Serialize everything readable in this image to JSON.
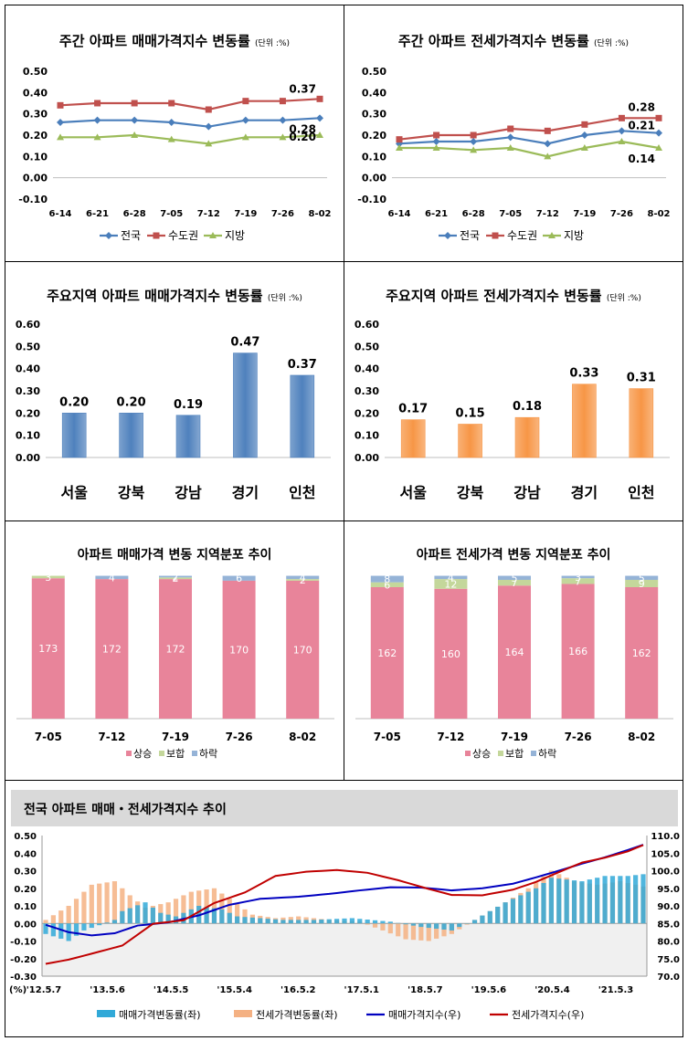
{
  "chart_data": [
    {
      "id": "weekly-sale",
      "type": "line",
      "title": "주간 아파트 매매가격지수 변동률",
      "unit": "(단위 :%)",
      "categories": [
        "6-14",
        "6-21",
        "6-28",
        "7-05",
        "7-12",
        "7-19",
        "7-26",
        "8-02"
      ],
      "ylim": [
        -0.1,
        0.5
      ],
      "yticks": [
        "-0.10",
        "0.00",
        "0.10",
        "0.20",
        "0.30",
        "0.40",
        "0.50"
      ],
      "series": [
        {
          "name": "전국",
          "color": "#4a7ebb",
          "marker": "diamond",
          "values": [
            0.26,
            0.27,
            0.27,
            0.26,
            0.24,
            0.27,
            0.27,
            0.28
          ],
          "end_label": "0.28"
        },
        {
          "name": "수도권",
          "color": "#c0504d",
          "marker": "square",
          "values": [
            0.34,
            0.35,
            0.35,
            0.35,
            0.32,
            0.36,
            0.36,
            0.37
          ],
          "end_label": "0.37"
        },
        {
          "name": "지방",
          "color": "#9bbb59",
          "marker": "triangle",
          "values": [
            0.19,
            0.19,
            0.2,
            0.18,
            0.16,
            0.19,
            0.19,
            0.2
          ],
          "end_label": "0.20"
        }
      ]
    },
    {
      "id": "weekly-jeonse",
      "type": "line",
      "title": "주간 아파트 전세가격지수 변동률",
      "unit": "(단위 :%)",
      "categories": [
        "6-14",
        "6-21",
        "6-28",
        "7-05",
        "7-12",
        "7-19",
        "7-26",
        "8-02"
      ],
      "ylim": [
        -0.1,
        0.5
      ],
      "yticks": [
        "-0.10",
        "0.00",
        "0.10",
        "0.20",
        "0.30",
        "0.40",
        "0.50"
      ],
      "series": [
        {
          "name": "전국",
          "color": "#4a7ebb",
          "marker": "diamond",
          "values": [
            0.16,
            0.17,
            0.17,
            0.19,
            0.16,
            0.2,
            0.22,
            0.21
          ],
          "end_label": "0.21"
        },
        {
          "name": "수도권",
          "color": "#c0504d",
          "marker": "square",
          "values": [
            0.18,
            0.2,
            0.2,
            0.23,
            0.22,
            0.25,
            0.28,
            0.28
          ],
          "end_label": "0.28"
        },
        {
          "name": "지방",
          "color": "#9bbb59",
          "marker": "triangle",
          "values": [
            0.14,
            0.14,
            0.13,
            0.14,
            0.1,
            0.14,
            0.17,
            0.14
          ],
          "end_label": "0.14"
        }
      ]
    },
    {
      "id": "regional-sale",
      "type": "bar",
      "title": "주요지역 아파트 매매가격지수 변동률",
      "unit": "(단위 :%)",
      "color": "#4f81bd",
      "categories": [
        "서울",
        "강북",
        "강남",
        "경기",
        "인천"
      ],
      "values": [
        0.2,
        0.2,
        0.19,
        0.47,
        0.37
      ],
      "labels": [
        "0.20",
        "0.20",
        "0.19",
        "0.47",
        "0.37"
      ],
      "ylim": [
        0,
        0.6
      ],
      "yticks": [
        "0.00",
        "0.10",
        "0.20",
        "0.30",
        "0.40",
        "0.50",
        "0.60"
      ]
    },
    {
      "id": "regional-jeonse",
      "type": "bar",
      "title": "주요지역 아파트 전세가격지수 변동률",
      "unit": "(단위 :%)",
      "color": "#f79646",
      "categories": [
        "서울",
        "강북",
        "강남",
        "경기",
        "인천"
      ],
      "values": [
        0.17,
        0.15,
        0.18,
        0.33,
        0.31
      ],
      "labels": [
        "0.17",
        "0.15",
        "0.18",
        "0.33",
        "0.31"
      ],
      "ylim": [
        0,
        0.6
      ],
      "yticks": [
        "0.00",
        "0.10",
        "0.20",
        "0.30",
        "0.40",
        "0.50",
        "0.60"
      ]
    },
    {
      "id": "dist-sale",
      "type": "bar",
      "stacked": true,
      "title": "아파트 매매가격 변동 지역분포 추이",
      "categories": [
        "7-05",
        "7-12",
        "7-19",
        "7-26",
        "8-02"
      ],
      "series": [
        {
          "name": "상승",
          "color": "#e8849a",
          "values": [
            173,
            172,
            172,
            170,
            170
          ],
          "labels": [
            "173",
            "172",
            "172",
            "170",
            "170"
          ]
        },
        {
          "name": "보합",
          "color": "#c4d79b",
          "values": [
            3,
            0,
            2,
            0,
            2
          ],
          "labels": [
            "3",
            "",
            "2",
            "",
            "2"
          ]
        },
        {
          "name": "하락",
          "color": "#95b3d7",
          "values": [
            0,
            4,
            2,
            6,
            4
          ],
          "labels": [
            "",
            "4",
            "2",
            "6",
            "4"
          ]
        }
      ]
    },
    {
      "id": "dist-jeonse",
      "type": "bar",
      "stacked": true,
      "title": "아파트 전세가격 변동 지역분포 추이",
      "categories": [
        "7-05",
        "7-12",
        "7-19",
        "7-26",
        "8-02"
      ],
      "series": [
        {
          "name": "상승",
          "color": "#e8849a",
          "values": [
            162,
            160,
            164,
            166,
            162
          ],
          "labels": [
            "162",
            "160",
            "164",
            "166",
            "162"
          ]
        },
        {
          "name": "보합",
          "color": "#c4d79b",
          "values": [
            6,
            12,
            7,
            7,
            9
          ],
          "labels": [
            "6",
            "12",
            "7",
            "7",
            "9"
          ]
        },
        {
          "name": "하락",
          "color": "#95b3d7",
          "values": [
            8,
            4,
            5,
            3,
            5
          ],
          "labels": [
            "8",
            "4",
            "5",
            "3",
            "5"
          ]
        }
      ]
    },
    {
      "id": "trend",
      "type": "area",
      "title": "전국 아파트 매매・전세가격지수 추이",
      "left_axis_unit": "(%)",
      "ylim_left": [
        -0.3,
        0.5
      ],
      "yticks_left": [
        "-0.30",
        "-0.20",
        "-0.10",
        "0.00",
        "0.10",
        "0.20",
        "0.30",
        "0.40",
        "0.50"
      ],
      "ylim_right": [
        70.0,
        110.0
      ],
      "yticks_right": [
        "70.0",
        "75.0",
        "80.0",
        "85.0",
        "90.0",
        "95.0",
        "100.0",
        "105.0",
        "110.0"
      ],
      "x_ticks": [
        "'12.5.7",
        "'13.5.6",
        "'14.5.5",
        "'15.5.4",
        "'16.5.2",
        "'17.5.1",
        "'18.5.7",
        "'19.5.6",
        "'20.5.4",
        "'21.5.3"
      ],
      "series": [
        {
          "name": "매매가격변동률(좌)",
          "kind": "bar",
          "axis": "left",
          "color": "#31a9d8",
          "anchors": [
            [
              0,
              -0.06
            ],
            [
              3,
              -0.1
            ],
            [
              5,
              -0.04
            ],
            [
              9,
              0.02
            ],
            [
              10,
              0.07
            ],
            [
              13,
              0.12
            ],
            [
              15,
              0.06
            ],
            [
              17,
              0.04
            ],
            [
              20,
              0.1
            ],
            [
              23,
              0.08
            ],
            [
              25,
              0.04
            ],
            [
              28,
              0.03
            ],
            [
              31,
              0.02
            ],
            [
              35,
              0.02
            ],
            [
              40,
              0.03
            ],
            [
              45,
              0.01
            ],
            [
              49,
              -0.02
            ],
            [
              53,
              -0.04
            ],
            [
              56,
              0.02
            ],
            [
              60,
              0.12
            ],
            [
              64,
              0.2
            ],
            [
              66,
              0.26
            ],
            [
              70,
              0.24
            ],
            [
              73,
              0.27
            ],
            [
              76,
              0.27
            ],
            [
              78,
              0.28
            ]
          ]
        },
        {
          "name": "전세가격변동률(좌)",
          "kind": "bar",
          "axis": "left",
          "color": "#f4b183",
          "anchors": [
            [
              0,
              0.02
            ],
            [
              3,
              0.1
            ],
            [
              6,
              0.22
            ],
            [
              9,
              0.24
            ],
            [
              11,
              0.16
            ],
            [
              13,
              0.09
            ],
            [
              16,
              0.12
            ],
            [
              19,
              0.18
            ],
            [
              22,
              0.2
            ],
            [
              24,
              0.14
            ],
            [
              27,
              0.05
            ],
            [
              30,
              0.03
            ],
            [
              33,
              0.04
            ],
            [
              37,
              0.02
            ],
            [
              41,
              0.01
            ],
            [
              44,
              -0.04
            ],
            [
              47,
              -0.09
            ],
            [
              50,
              -0.1
            ],
            [
              53,
              -0.06
            ],
            [
              56,
              0.02
            ],
            [
              60,
              0.12
            ],
            [
              63,
              0.2
            ],
            [
              66,
              0.3
            ],
            [
              69,
              0.24
            ],
            [
              72,
              0.22
            ],
            [
              75,
              0.24
            ],
            [
              78,
              0.21
            ]
          ]
        },
        {
          "name": "매매가격지수(우)",
          "kind": "line",
          "axis": "right",
          "color": "#0000c0",
          "anchors": [
            [
              0,
              84.6
            ],
            [
              3,
              82.5
            ],
            [
              6,
              81.6
            ],
            [
              9,
              82.2
            ],
            [
              12,
              84.4
            ],
            [
              16,
              85.3
            ],
            [
              20,
              87.3
            ],
            [
              24,
              90.3
            ],
            [
              28,
              92.0
            ],
            [
              33,
              92.6
            ],
            [
              37,
              93.4
            ],
            [
              41,
              94.4
            ],
            [
              45,
              95.3
            ],
            [
              49,
              95.2
            ],
            [
              53,
              94.4
            ],
            [
              57,
              95.0
            ],
            [
              61,
              96.3
            ],
            [
              64,
              98.1
            ],
            [
              67,
              100.0
            ],
            [
              70,
              102.0
            ],
            [
              73,
              103.8
            ],
            [
              76,
              105.9
            ],
            [
              78,
              107.4
            ]
          ]
        },
        {
          "name": "전세가격지수(우)",
          "kind": "line",
          "axis": "right",
          "color": "#c00000",
          "anchors": [
            [
              0,
              73.5
            ],
            [
              3,
              74.7
            ],
            [
              6,
              76.4
            ],
            [
              10,
              78.7
            ],
            [
              14,
              84.9
            ],
            [
              18,
              85.9
            ],
            [
              22,
              90.8
            ],
            [
              26,
              93.8
            ],
            [
              30,
              98.5
            ],
            [
              34,
              99.7
            ],
            [
              38,
              100.2
            ],
            [
              42,
              99.4
            ],
            [
              46,
              97.3
            ],
            [
              50,
              94.8
            ],
            [
              53,
              93.1
            ],
            [
              57,
              93.0
            ],
            [
              61,
              94.6
            ],
            [
              64,
              96.8
            ],
            [
              67,
              99.6
            ],
            [
              70,
              102.3
            ],
            [
              73,
              103.7
            ],
            [
              76,
              105.5
            ],
            [
              78,
              107.3
            ]
          ]
        }
      ]
    }
  ]
}
